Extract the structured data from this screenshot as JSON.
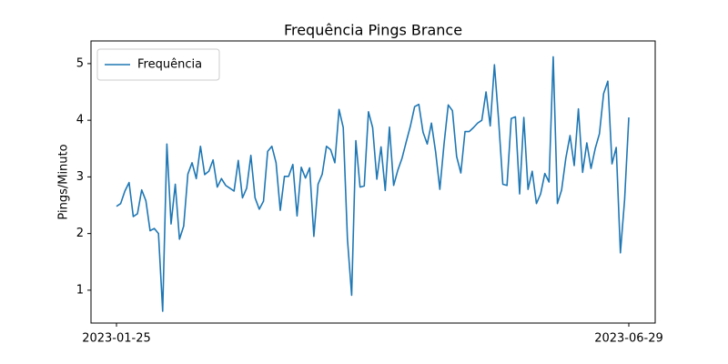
{
  "chart_data": {
    "type": "line",
    "title": "Frequência Pings Brance",
    "y_label": "Pings/Minuto",
    "categories": [
      "2023-01-25",
      null,
      null,
      null,
      null,
      null,
      null,
      null,
      null,
      null,
      null,
      null,
      null,
      null,
      null,
      null,
      null,
      null,
      null,
      null,
      null,
      null,
      null,
      null,
      null,
      null,
      null,
      null,
      null,
      null,
      null,
      null,
      null,
      null,
      null,
      null,
      null,
      null,
      null,
      null,
      null,
      null,
      null,
      null,
      null,
      null,
      null,
      null,
      null,
      null,
      null,
      null,
      null,
      null,
      null,
      null,
      null,
      null,
      null,
      null,
      null,
      null,
      null,
      null,
      null,
      null,
      null,
      null,
      null,
      null,
      null,
      null,
      null,
      null,
      null,
      null,
      null,
      null,
      null,
      null,
      null,
      null,
      null,
      null,
      null,
      null,
      null,
      null,
      null,
      null,
      null,
      null,
      null,
      null,
      null,
      null,
      null,
      null,
      null,
      null,
      null,
      null,
      null,
      null,
      null,
      null,
      null,
      null,
      null,
      null,
      null,
      null,
      null,
      null,
      null,
      null,
      null,
      null,
      null,
      null,
      null,
      null,
      "2023-06-29"
    ],
    "series": [
      {
        "name": "Frequência",
        "color": "#1f77b4",
        "values": [
          2.48,
          2.53,
          2.75,
          2.9,
          2.3,
          2.35,
          2.77,
          2.58,
          2.05,
          2.09,
          2.0,
          0.63,
          3.58,
          2.17,
          2.87,
          1.9,
          2.13,
          3.05,
          3.25,
          2.97,
          3.54,
          3.04,
          3.1,
          3.3,
          2.82,
          2.97,
          2.85,
          2.8,
          2.75,
          3.29,
          2.63,
          2.8,
          3.38,
          2.63,
          2.43,
          2.57,
          3.45,
          3.54,
          3.25,
          2.41,
          3.01,
          3.01,
          3.22,
          2.31,
          3.17,
          2.98,
          3.16,
          1.95,
          2.87,
          3.05,
          3.54,
          3.48,
          3.25,
          4.19,
          3.87,
          1.9,
          0.91,
          3.64,
          2.82,
          2.84,
          4.15,
          3.87,
          2.96,
          3.53,
          2.76,
          3.88,
          2.85,
          3.12,
          3.33,
          3.62,
          3.9,
          4.24,
          4.28,
          3.79,
          3.58,
          3.95,
          3.44,
          2.78,
          3.58,
          4.27,
          4.17,
          3.36,
          3.07,
          3.8,
          3.8,
          3.87,
          3.95,
          4.0,
          4.5,
          3.9,
          4.98,
          4.0,
          2.87,
          2.85,
          4.03,
          4.06,
          2.7,
          4.05,
          2.78,
          3.1,
          2.53,
          2.7,
          3.06,
          2.91,
          5.12,
          2.53,
          2.77,
          3.33,
          3.73,
          3.2,
          4.2,
          3.08,
          3.6,
          3.15,
          3.5,
          3.76,
          4.47,
          4.69,
          3.23,
          3.52,
          1.66,
          2.6,
          4.05
        ]
      }
    ],
    "ylim": [
      0.42,
      5.4
    ],
    "yticks": [
      1,
      2,
      3,
      4,
      5
    ],
    "grid": false,
    "legend": "upper left"
  }
}
